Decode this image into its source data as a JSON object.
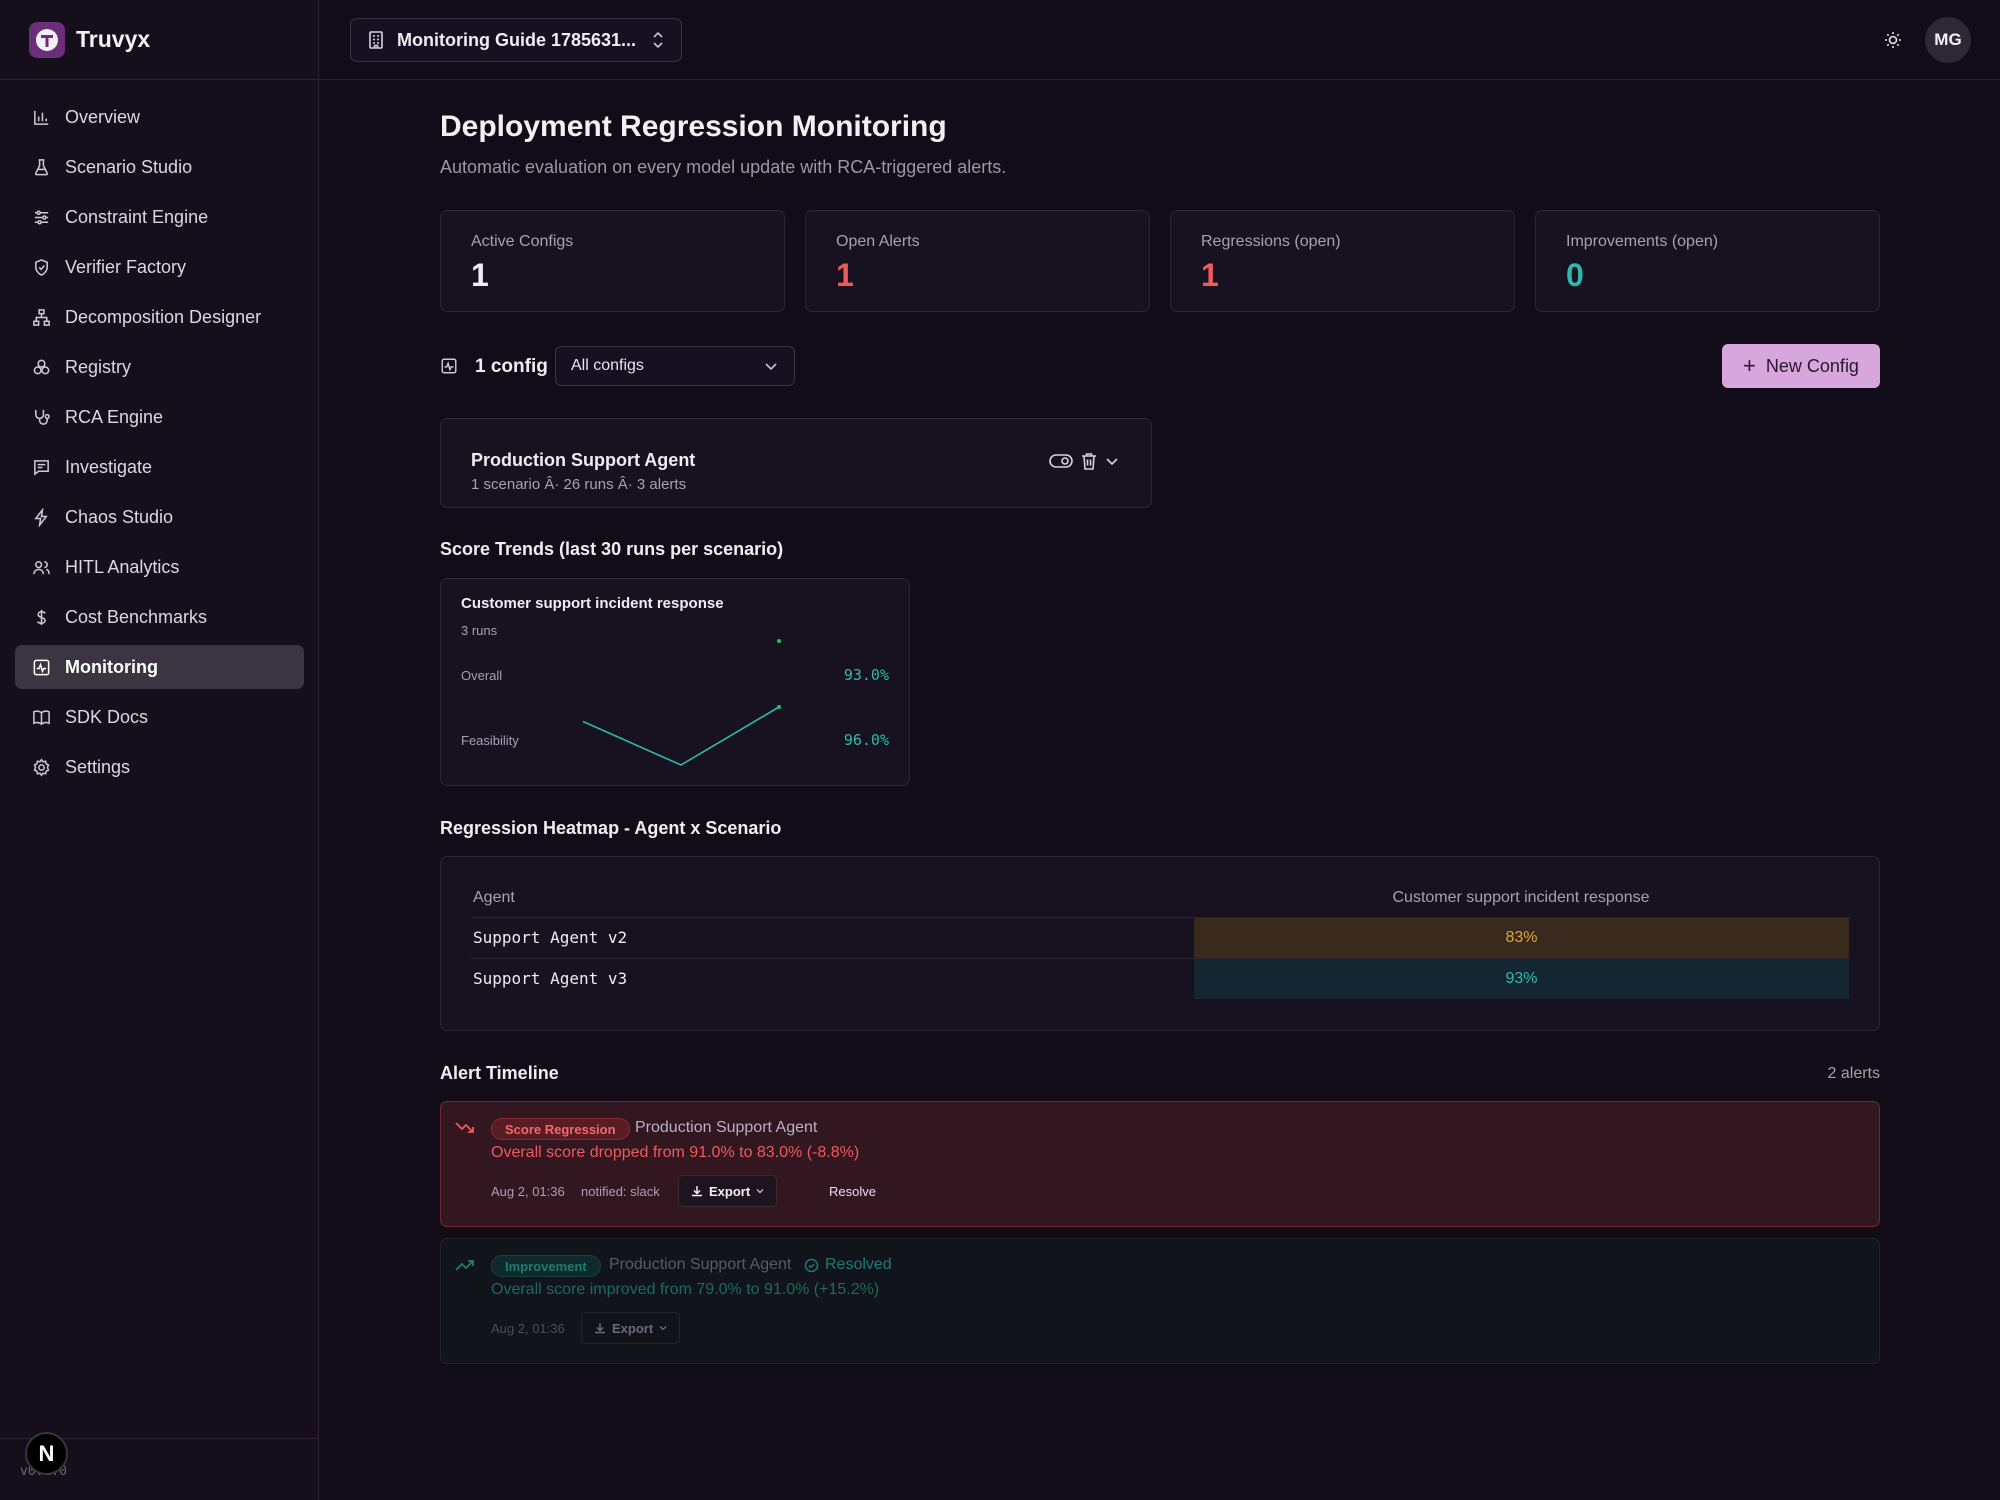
{
  "app": {
    "name": "Truvyx",
    "version": "v0.1.0",
    "dev_badge": "N"
  },
  "org_switcher": {
    "label": "Monitoring Guide 1785631..."
  },
  "user": {
    "initials": "MG"
  },
  "sidebar": {
    "items": [
      {
        "label": "Overview",
        "icon": "bar-chart-icon"
      },
      {
        "label": "Scenario Studio",
        "icon": "flask-icon"
      },
      {
        "label": "Constraint Engine",
        "icon": "sliders-icon"
      },
      {
        "label": "Verifier Factory",
        "icon": "shield-check-icon"
      },
      {
        "label": "Decomposition Designer",
        "icon": "network-icon"
      },
      {
        "label": "Registry",
        "icon": "boxes-icon"
      },
      {
        "label": "RCA Engine",
        "icon": "stethoscope-icon"
      },
      {
        "label": "Investigate",
        "icon": "message-icon"
      },
      {
        "label": "Chaos Studio",
        "icon": "bolt-icon"
      },
      {
        "label": "HITL Analytics",
        "icon": "users-icon"
      },
      {
        "label": "Cost Benchmarks",
        "icon": "dollar-icon"
      },
      {
        "label": "Monitoring",
        "icon": "activity-icon",
        "active": true
      },
      {
        "label": "SDK Docs",
        "icon": "book-icon"
      },
      {
        "label": "Settings",
        "icon": "gear-icon"
      }
    ]
  },
  "page": {
    "title": "Deployment Regression Monitoring",
    "subtitle": "Automatic evaluation on every model update with RCA-triggered alerts."
  },
  "stats": [
    {
      "label": "Active Configs",
      "value": "1",
      "color": "#f0ecf5"
    },
    {
      "label": "Open Alerts",
      "value": "1",
      "color": "#ef5a5a"
    },
    {
      "label": "Regressions (open)",
      "value": "1",
      "color": "#ef5a5a"
    },
    {
      "label": "Improvements (open)",
      "value": "0",
      "color": "#2bbbad"
    }
  ],
  "configs": {
    "count_label": "1 config",
    "filter_value": "All configs",
    "new_button": "New Config"
  },
  "agent_card": {
    "name": "Production Support Agent",
    "meta": "1 scenario Â· 26 runs Â· 3 alerts"
  },
  "score_trends": {
    "title": "Score Trends (last 30 runs per scenario)",
    "card": {
      "scenario": "Customer support incident response",
      "runs": "3 runs",
      "metrics": [
        {
          "label": "Overall",
          "value": "93.0%",
          "points": [
            93
          ]
        },
        {
          "label": "Feasibility",
          "value": "96.0%",
          "points": [
            94,
            88,
            96
          ]
        }
      ]
    }
  },
  "heatmap": {
    "title": "Regression Heatmap - Agent x Scenario",
    "col_agent": "Agent",
    "col_scenario": "Customer support incident response",
    "rows": [
      {
        "agent": "Support Agent v2",
        "value": "83%",
        "bg": "#3a2a1e",
        "fg": "#e0a33a"
      },
      {
        "agent": "Support Agent v3",
        "value": "93%",
        "bg": "#142631",
        "fg": "#2bbbad"
      }
    ]
  },
  "alerts": {
    "title": "Alert Timeline",
    "count": "2 alerts",
    "items": [
      {
        "tag": "Score Regression",
        "agent": "Production Support Agent",
        "message": "Overall score dropped from 91.0% to 83.0% (-8.8%)",
        "time": "Aug 2, 01:36",
        "notified": "notified: slack",
        "export": "Export",
        "resolve": "Resolve"
      },
      {
        "tag": "Improvement",
        "agent": "Production Support Agent",
        "status": "Resolved",
        "message": "Overall score improved from 79.0% to 91.0% (+15.2%)",
        "time": "Aug 2, 01:36",
        "export": "Export"
      }
    ]
  }
}
